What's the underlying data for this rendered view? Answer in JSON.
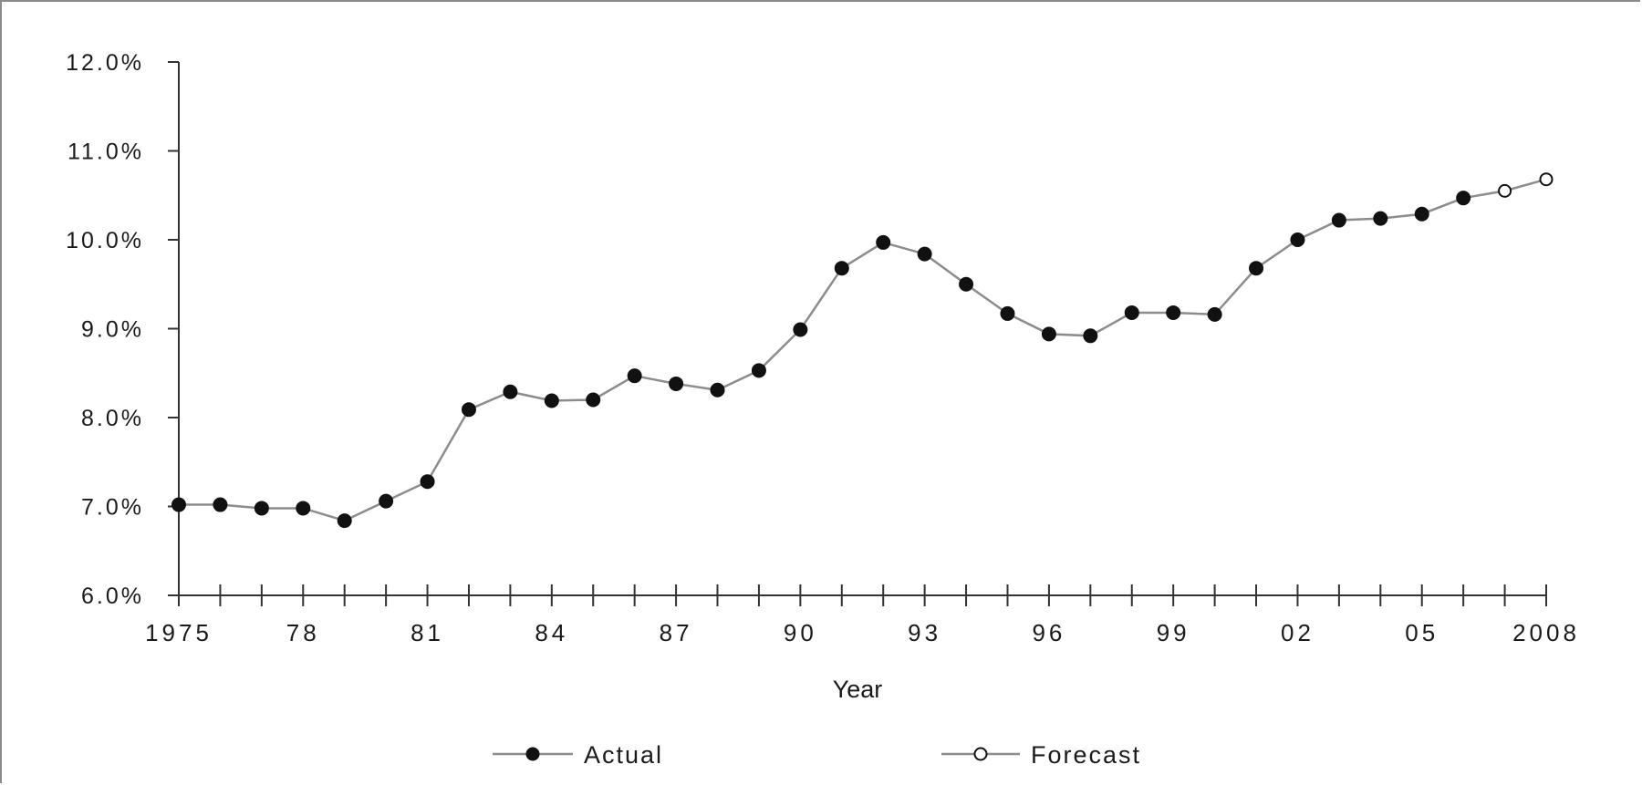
{
  "chart_data": {
    "type": "line",
    "title": "",
    "xlabel": "Year",
    "ylabel": "",
    "ylim": [
      6.0,
      12.0
    ],
    "xlim": [
      1975,
      2008
    ],
    "y_ticks": [
      "6.0%",
      "7.0%",
      "8.0%",
      "9.0%",
      "10.0%",
      "11.0%",
      "12.0%"
    ],
    "y_tick_values": [
      6,
      7,
      8,
      9,
      10,
      11,
      12
    ],
    "x_tick_labels": [
      {
        "year": 1975,
        "label": "1975"
      },
      {
        "year": 1978,
        "label": "78"
      },
      {
        "year": 1981,
        "label": "81"
      },
      {
        "year": 1984,
        "label": "84"
      },
      {
        "year": 1987,
        "label": "87"
      },
      {
        "year": 1990,
        "label": "90"
      },
      {
        "year": 1993,
        "label": "93"
      },
      {
        "year": 1996,
        "label": "96"
      },
      {
        "year": 1999,
        "label": "99"
      },
      {
        "year": 2002,
        "label": "02"
      },
      {
        "year": 2005,
        "label": "05"
      },
      {
        "year": 2008,
        "label": "2008"
      }
    ],
    "grid": false,
    "legend_position": "bottom",
    "series": [
      {
        "name": "Actual",
        "marker": "filled-circle",
        "x": [
          1975,
          1976,
          1977,
          1978,
          1979,
          1980,
          1981,
          1982,
          1983,
          1984,
          1985,
          1986,
          1987,
          1988,
          1989,
          1990,
          1991,
          1992,
          1993,
          1994,
          1995,
          1996,
          1997,
          1998,
          1999,
          2000,
          2001,
          2002,
          2003,
          2004,
          2005,
          2006
        ],
        "values": [
          7.02,
          7.02,
          6.98,
          6.98,
          6.84,
          7.06,
          7.28,
          8.09,
          8.29,
          8.19,
          8.2,
          8.47,
          8.38,
          8.31,
          8.53,
          8.99,
          9.68,
          9.97,
          9.84,
          9.5,
          9.17,
          8.94,
          8.92,
          9.18,
          9.18,
          9.16,
          9.68,
          10.0,
          10.22,
          10.24,
          10.29,
          10.47
        ]
      },
      {
        "name": "Forecast",
        "marker": "open-circle",
        "x": [
          2007,
          2008
        ],
        "values": [
          10.55,
          10.68
        ]
      }
    ],
    "colors": {
      "line": "#8c8c8c",
      "marker": "#111111",
      "axis": "#333333"
    }
  }
}
